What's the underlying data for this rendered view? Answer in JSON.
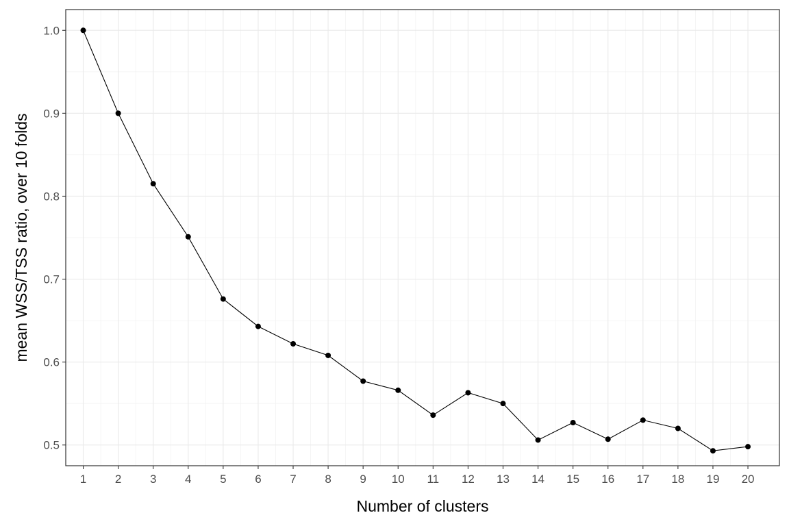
{
  "chart_data": {
    "type": "line",
    "title": "",
    "xlabel": "Number of clusters",
    "ylabel": "mean WSS/TSS ratio, over 10 folds",
    "x": [
      1,
      2,
      3,
      4,
      5,
      6,
      7,
      8,
      9,
      10,
      11,
      12,
      13,
      14,
      15,
      16,
      17,
      18,
      19,
      20
    ],
    "series": [
      {
        "values": [
          1.0,
          0.9,
          0.815,
          0.751,
          0.676,
          0.643,
          0.622,
          0.608,
          0.577,
          0.566,
          0.536,
          0.563,
          0.55,
          0.506,
          0.527,
          0.507,
          0.53,
          0.52,
          0.493,
          0.498
        ]
      }
    ],
    "xlim": [
      0.5,
      20.9
    ],
    "ylim": [
      0.475,
      1.025
    ],
    "x_ticks": [
      1,
      2,
      3,
      4,
      5,
      6,
      7,
      8,
      9,
      10,
      11,
      12,
      13,
      14,
      15,
      16,
      17,
      18,
      19,
      20
    ],
    "x_tick_labels": [
      "1",
      "2",
      "3",
      "4",
      "5",
      "6",
      "7",
      "8",
      "9",
      "10",
      "11",
      "12",
      "13",
      "14",
      "15",
      "16",
      "17",
      "18",
      "19",
      "20"
    ],
    "y_ticks": [
      0.5,
      0.6,
      0.7,
      0.8,
      0.9,
      1.0
    ],
    "y_tick_labels": [
      "0.5",
      "0.6",
      "0.7",
      "0.8",
      "0.9",
      "1.0"
    ],
    "grid": true,
    "theme": "bw",
    "colors": {
      "line": "#000000",
      "points": "#000000",
      "grid_major": "#ebebeb",
      "grid_minor": "#f3f3f3",
      "panel_border": "#333333",
      "tick_text": "#4d4d4d"
    }
  }
}
